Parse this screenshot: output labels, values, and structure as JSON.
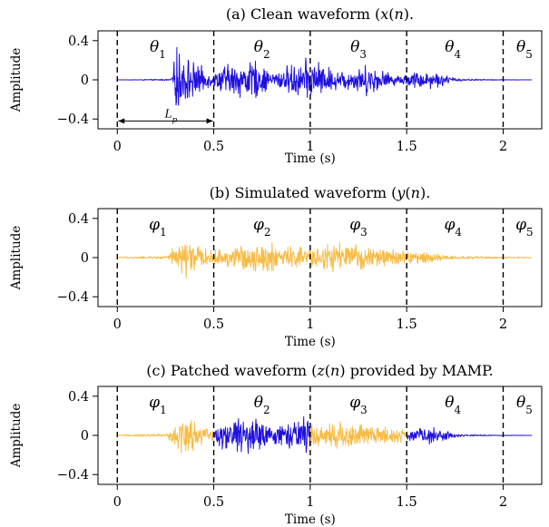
{
  "chart_data": [
    {
      "type": "line",
      "title": "(a) Clean waveform (x(n)).",
      "xlabel": "Time (s)",
      "ylabel": "Amplitude",
      "xlim": [
        -0.1,
        2.2
      ],
      "ylim": [
        -0.5,
        0.5
      ],
      "xticks": [
        "0",
        "0.5",
        "1",
        "1.5",
        "2"
      ],
      "yticks": [
        "0.4",
        "0",
        "−0.4"
      ],
      "segment_boundaries": [
        0,
        0.5,
        1.0,
        1.5,
        2.0
      ],
      "segment_labels": [
        "θ1",
        "θ2",
        "θ3",
        "θ4",
        "θ5"
      ],
      "annotation": "Lp",
      "annotation_span": [
        0,
        0.5
      ],
      "series": [
        {
          "color": "#1f10e0",
          "segments": [
            [
              0,
              2.15
            ]
          ],
          "envelope": {
            "t": [
              0,
              0.28,
              0.31,
              0.34,
              0.4,
              0.5,
              0.55,
              0.62,
              0.72,
              0.8,
              0.9,
              1.0,
              1.05,
              1.15,
              1.3,
              1.45,
              1.55,
              1.65,
              1.72,
              1.8,
              2.15
            ],
            "amp": [
              0,
              0.01,
              0.4,
              0.3,
              0.2,
              0.06,
              0.18,
              0.2,
              0.22,
              0.08,
              0.18,
              0.25,
              0.2,
              0.1,
              0.18,
              0.05,
              0.1,
              0.1,
              0.04,
              0.01,
              0
            ]
          }
        }
      ]
    },
    {
      "type": "line",
      "title": "(b) Simulated waveform (y(n)).",
      "xlabel": "Time (s)",
      "ylabel": "Amplitude",
      "xlim": [
        -0.1,
        2.2
      ],
      "ylim": [
        -0.5,
        0.5
      ],
      "xticks": [
        "0",
        "0.5",
        "1",
        "1.5",
        "2"
      ],
      "yticks": [
        "0.4",
        "0",
        "−0.4"
      ],
      "segment_boundaries": [
        0,
        0.5,
        1.0,
        1.5,
        2.0
      ],
      "segment_labels": [
        "φ1",
        "φ2",
        "φ3",
        "φ4",
        "φ5"
      ],
      "series": [
        {
          "color": "#f7bc45",
          "segments": [
            [
              0,
              2.15
            ]
          ],
          "envelope": {
            "t": [
              0,
              0.26,
              0.3,
              0.36,
              0.45,
              0.5,
              0.6,
              0.75,
              0.9,
              1.0,
              1.15,
              1.3,
              1.45,
              1.55,
              1.65,
              1.75,
              2.15
            ],
            "amp": [
              0.005,
              0.02,
              0.15,
              0.24,
              0.1,
              0.08,
              0.14,
              0.18,
              0.14,
              0.12,
              0.18,
              0.12,
              0.1,
              0.08,
              0.05,
              0.02,
              0.005
            ]
          }
        }
      ]
    },
    {
      "type": "line",
      "title": "(c) Patched waveform (z(n)) provided by MAMP.",
      "xlabel": "Time (s)",
      "ylabel": "Amplitude",
      "xlim": [
        -0.1,
        2.2
      ],
      "ylim": [
        -0.5,
        0.5
      ],
      "xticks": [
        "0",
        "0.5",
        "1",
        "1.5",
        "2"
      ],
      "yticks": [
        "0.4",
        "0",
        "−0.4"
      ],
      "segment_boundaries": [
        0,
        0.5,
        1.0,
        1.5,
        2.0
      ],
      "segment_labels": [
        "φ1",
        "θ2",
        "φ3",
        "θ4",
        "θ5"
      ],
      "series": [
        {
          "color": "#f7bc45",
          "segments": [
            [
              0,
              0.5
            ],
            [
              1.0,
              1.5
            ]
          ],
          "envelope": {
            "t": [
              0,
              0.26,
              0.3,
              0.36,
              0.45,
              0.5,
              1.0,
              1.15,
              1.3,
              1.45,
              1.5
            ],
            "amp": [
              0.005,
              0.02,
              0.15,
              0.24,
              0.1,
              0.08,
              0.12,
              0.18,
              0.12,
              0.1,
              0.08
            ]
          }
        },
        {
          "color": "#1f10e0",
          "segments": [
            [
              0.5,
              1.0
            ],
            [
              1.5,
              2.15
            ]
          ],
          "envelope": {
            "t": [
              0.5,
              0.55,
              0.62,
              0.72,
              0.8,
              0.9,
              1.0,
              1.5,
              1.55,
              1.65,
              1.72,
              1.8,
              2.15
            ],
            "amp": [
              0.06,
              0.18,
              0.2,
              0.22,
              0.08,
              0.18,
              0.25,
              0.05,
              0.1,
              0.1,
              0.04,
              0.01,
              0
            ]
          }
        }
      ]
    }
  ]
}
